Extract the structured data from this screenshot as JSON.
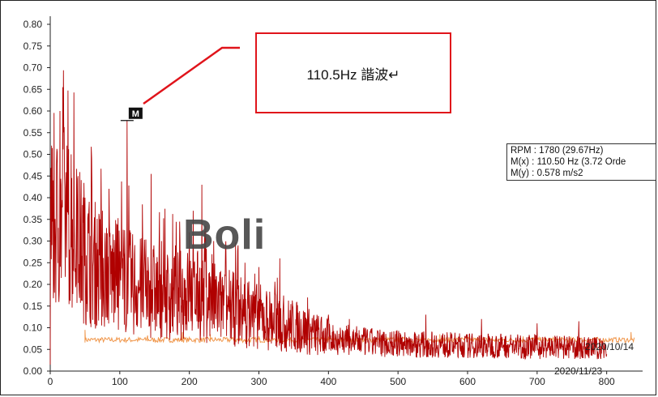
{
  "chart_data": {
    "type": "line",
    "title": "",
    "xlabel": "",
    "ylabel": "",
    "xlim": [
      0,
      840
    ],
    "ylim": [
      0,
      0.8
    ],
    "x_ticks": [
      "0",
      "100",
      "200",
      "300",
      "400",
      "500",
      "600",
      "700",
      "800"
    ],
    "y_ticks": [
      "0.00",
      "0.05",
      "0.10",
      "0.15",
      "0.20",
      "0.25",
      "0.30",
      "0.35",
      "0.40",
      "0.45",
      "0.50",
      "0.55",
      "0.60",
      "0.65",
      "0.70",
      "0.75",
      "0.80"
    ],
    "grid": false,
    "series": [
      {
        "name": "2020/11/23",
        "color": "#b00000",
        "x_range": [
          0,
          800
        ],
        "envelope": [
          [
            0,
            0.35
          ],
          [
            10,
            0.38
          ],
          [
            20,
            0.4
          ],
          [
            40,
            0.33
          ],
          [
            60,
            0.28
          ],
          [
            80,
            0.25
          ],
          [
            100,
            0.24
          ],
          [
            120,
            0.22
          ],
          [
            140,
            0.21
          ],
          [
            160,
            0.2
          ],
          [
            180,
            0.19
          ],
          [
            200,
            0.2
          ],
          [
            220,
            0.19
          ],
          [
            240,
            0.17
          ],
          [
            260,
            0.16
          ],
          [
            280,
            0.15
          ],
          [
            300,
            0.14
          ],
          [
            320,
            0.13
          ],
          [
            340,
            0.12
          ],
          [
            360,
            0.11
          ],
          [
            380,
            0.095
          ],
          [
            400,
            0.085
          ],
          [
            450,
            0.075
          ],
          [
            500,
            0.07
          ],
          [
            550,
            0.068
          ],
          [
            600,
            0.065
          ],
          [
            650,
            0.065
          ],
          [
            700,
            0.062
          ],
          [
            750,
            0.06
          ],
          [
            800,
            0.058
          ]
        ],
        "peaks": [
          [
            2,
            0.52
          ],
          [
            4,
            0.44
          ],
          [
            14,
            0.6
          ],
          [
            18,
            0.655
          ],
          [
            24,
            0.52
          ],
          [
            30,
            0.5
          ],
          [
            40,
            0.45
          ],
          [
            50,
            0.4
          ],
          [
            60,
            0.41
          ],
          [
            75,
            0.37
          ],
          [
            85,
            0.34
          ],
          [
            110.5,
            0.578
          ],
          [
            145,
            0.455
          ],
          [
            160,
            0.3
          ],
          [
            180,
            0.29
          ],
          [
            200,
            0.32
          ],
          [
            218,
            0.43
          ],
          [
            235,
            0.3
          ],
          [
            270,
            0.29
          ],
          [
            300,
            0.24
          ],
          [
            330,
            0.26
          ],
          [
            370,
            0.17
          ],
          [
            400,
            0.13
          ],
          [
            430,
            0.12
          ],
          [
            540,
            0.13
          ],
          [
            620,
            0.12
          ],
          [
            700,
            0.11
          ],
          [
            760,
            0.115
          ]
        ]
      },
      {
        "name": "2020/10/14",
        "color": "#f0964a",
        "x_range": [
          50,
          840
        ],
        "level": 0.072,
        "spikes": [
          [
            50,
            0.095
          ],
          [
            140,
            0.082
          ],
          [
            190,
            0.09
          ],
          [
            230,
            0.085
          ],
          [
            300,
            0.08
          ],
          [
            400,
            0.078
          ],
          [
            500,
            0.08
          ],
          [
            560,
            0.085
          ],
          [
            620,
            0.078
          ],
          [
            680,
            0.08
          ],
          [
            760,
            0.082
          ],
          [
            835,
            0.09
          ]
        ]
      }
    ],
    "marker": {
      "label": "M",
      "x": 110.5,
      "y": 0.578
    },
    "annotation": {
      "text": "110.5Hz 諧波↵"
    },
    "cursor_readout": {
      "rpm": "RPM : 1780 (29.67Hz)",
      "mx": "M(x) : 110.50 Hz (3.72 Orde",
      "my": "M(y) : 0.578 m/s2"
    },
    "watermark": "Boli",
    "callout_color": "#e0141b"
  }
}
